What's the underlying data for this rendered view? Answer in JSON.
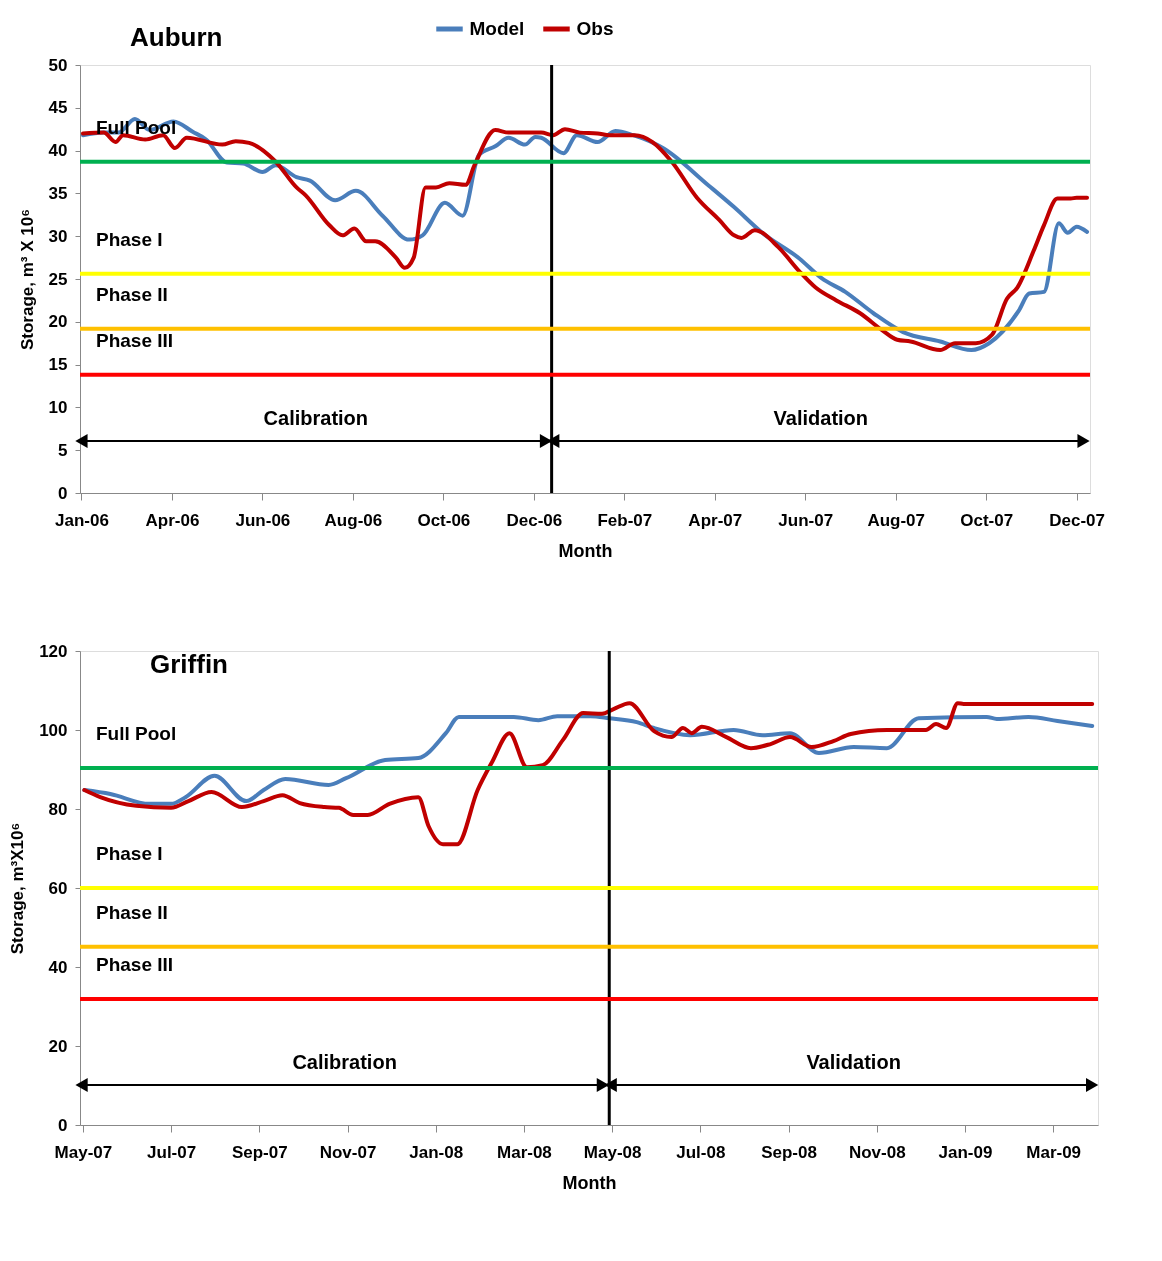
{
  "chart_data": [
    {
      "type": "line",
      "title": "Auburn",
      "xlabel": "Month",
      "ylabel": "Storage, m³ X 10⁶",
      "legend": "top",
      "grid": false,
      "line_style": "solid",
      "marker": "none",
      "xlim": [
        "2006-01-30",
        "2007-12-12"
      ],
      "ylim": [
        0,
        50
      ],
      "yticks": [
        0,
        5,
        10,
        15,
        20,
        25,
        30,
        35,
        40,
        45,
        50
      ],
      "xticks": [
        {
          "value": "2006-01-31",
          "label": "Jan-06"
        },
        {
          "value": "2006-04-02",
          "label": "Apr-06"
        },
        {
          "value": "2006-06-02",
          "label": "Jun-06"
        },
        {
          "value": "2006-08-02",
          "label": "Aug-06"
        },
        {
          "value": "2006-10-02",
          "label": "Oct-06"
        },
        {
          "value": "2006-12-02",
          "label": "Dec-06"
        },
        {
          "value": "2007-02-01",
          "label": "Feb-07"
        },
        {
          "value": "2007-04-03",
          "label": "Apr-07"
        },
        {
          "value": "2007-06-03",
          "label": "Jun-07"
        },
        {
          "value": "2007-08-03",
          "label": "Aug-07"
        },
        {
          "value": "2007-10-03",
          "label": "Oct-07"
        },
        {
          "value": "2007-12-03",
          "label": "Dec-07"
        }
      ],
      "series": [
        {
          "name": "Model",
          "color": "#4a7ebb",
          "x": [
            "2006-02-01",
            "2006-02-15",
            "2006-02-25",
            "2006-03-08",
            "2006-03-18",
            "2006-04-03",
            "2006-04-16",
            "2006-04-25",
            "2006-05-09",
            "2006-05-20",
            "2006-06-02",
            "2006-06-11",
            "2006-06-25",
            "2006-07-04",
            "2006-07-21",
            "2006-08-04",
            "2006-08-22",
            "2006-09-09",
            "2006-09-18",
            "2006-10-03",
            "2006-10-15",
            "2006-10-26",
            "2006-11-06",
            "2006-11-15",
            "2006-11-26",
            "2006-12-03",
            "2006-12-07",
            "2006-12-22",
            "2006-12-31",
            "2007-01-14",
            "2007-01-26",
            "2007-02-07",
            "2007-02-27",
            "2007-03-30",
            "2007-04-16",
            "2007-05-05",
            "2007-05-30",
            "2007-06-14",
            "2007-06-30",
            "2007-07-19",
            "2007-08-08",
            "2007-09-02",
            "2007-09-23",
            "2007-10-05",
            "2007-10-25",
            "2007-11-01",
            "2007-11-11",
            "2007-11-21",
            "2007-11-27",
            "2007-12-03",
            "2007-12-10"
          ],
          "values": [
            41.8,
            42.1,
            42.1,
            43.7,
            42.4,
            43.4,
            42.2,
            41.3,
            38.6,
            38.5,
            37.5,
            38.3,
            36.9,
            36.5,
            34.2,
            35.3,
            32.4,
            29.6,
            30.1,
            33.9,
            32.4,
            39.5,
            40.5,
            41.5,
            40.7,
            41.6,
            41.5,
            39.7,
            41.8,
            41.0,
            42.3,
            41.8,
            40.3,
            35.9,
            33.4,
            30.4,
            27.4,
            25.1,
            23.5,
            21.0,
            18.8,
            17.7,
            16.7,
            17.5,
            21.3,
            23.3,
            23.5,
            31.5,
            30.4,
            31.1,
            30.5
          ]
        },
        {
          "name": "Obs",
          "color": "#c00000",
          "x": [
            "2006-02-01",
            "2006-02-15",
            "2006-02-23",
            "2006-02-28",
            "2006-03-15",
            "2006-03-27",
            "2006-04-04",
            "2006-04-12",
            "2006-05-06",
            "2006-05-15",
            "2006-05-24",
            "2006-06-11",
            "2006-06-25",
            "2006-07-01",
            "2006-07-17",
            "2006-07-26",
            "2006-08-03",
            "2006-08-11",
            "2006-08-17",
            "2006-08-31",
            "2006-09-06",
            "2006-09-12",
            "2006-09-20",
            "2006-09-27",
            "2006-10-06",
            "2006-10-17",
            "2006-10-23",
            "2006-11-06",
            "2006-11-15",
            "2006-12-03",
            "2006-12-07",
            "2006-12-15",
            "2006-12-23",
            "2007-01-02",
            "2007-01-14",
            "2007-01-22",
            "2007-02-08",
            "2007-02-20",
            "2007-03-05",
            "2007-03-22",
            "2007-04-06",
            "2007-04-16",
            "2007-04-21",
            "2007-04-30",
            "2007-05-16",
            "2007-05-30",
            "2007-06-10",
            "2007-06-24",
            "2007-07-10",
            "2007-07-25",
            "2007-08-04",
            "2007-08-13",
            "2007-09-02",
            "2007-09-12",
            "2007-09-26",
            "2007-10-07",
            "2007-10-17",
            "2007-10-24",
            "2007-11-04",
            "2007-11-11",
            "2007-11-20",
            "2007-11-29",
            "2007-12-03",
            "2007-12-10"
          ],
          "values": [
            42.0,
            42.1,
            41.0,
            41.8,
            41.3,
            41.8,
            40.3,
            41.5,
            40.7,
            41.1,
            40.9,
            38.7,
            35.7,
            34.8,
            31.3,
            30.1,
            30.9,
            29.4,
            29.4,
            27.5,
            26.3,
            27.5,
            35.7,
            35.7,
            36.2,
            36.0,
            38.3,
            42.4,
            42.1,
            42.1,
            42.1,
            41.8,
            42.5,
            42.1,
            42.0,
            41.8,
            41.8,
            41.0,
            38.7,
            34.5,
            31.9,
            30.1,
            29.8,
            30.7,
            28.7,
            25.9,
            24.0,
            22.5,
            21.0,
            19.0,
            17.9,
            17.7,
            16.7,
            17.5,
            17.5,
            18.5,
            22.7,
            24.0,
            28.3,
            31.3,
            34.4,
            34.4,
            34.5,
            34.5
          ]
        }
      ],
      "ref_lines": [
        {
          "axis": "y",
          "value": 38.7,
          "label": "Full Pool",
          "color": "#00b050"
        },
        {
          "axis": "y",
          "value": 25.6,
          "label": "Phase  I",
          "color": "#ffff00"
        },
        {
          "axis": "y",
          "value": 19.2,
          "label": "Phase  II",
          "color": "#ffc000"
        },
        {
          "axis": "y",
          "value": 13.8,
          "label": "Phase  III",
          "color": "#ff0000"
        },
        {
          "axis": "x",
          "value": "2006-12-14",
          "color": "#000000"
        }
      ],
      "annotations": [
        "Calibration",
        "Validation"
      ]
    },
    {
      "type": "line",
      "title": "Griffin",
      "xlabel": "Month",
      "ylabel": "Storage, m³X10⁶",
      "grid": false,
      "line_style": "solid",
      "marker": "none",
      "xlim": [
        "2007-05-13",
        "2009-04-16"
      ],
      "ylim": [
        0,
        120
      ],
      "yticks": [
        0,
        20,
        40,
        60,
        80,
        100,
        120
      ],
      "xticks": [
        {
          "value": "2007-05-15",
          "label": "May-07"
        },
        {
          "value": "2007-07-15",
          "label": "Jul-07"
        },
        {
          "value": "2007-09-14",
          "label": "Sep-07"
        },
        {
          "value": "2007-11-14",
          "label": "Nov-07"
        },
        {
          "value": "2008-01-14",
          "label": "Jan-08"
        },
        {
          "value": "2008-03-15",
          "label": "Mar-08"
        },
        {
          "value": "2008-05-15",
          "label": "May-08"
        },
        {
          "value": "2008-07-15",
          "label": "Jul-08"
        },
        {
          "value": "2008-09-14",
          "label": "Sep-08"
        },
        {
          "value": "2008-11-14",
          "label": "Nov-08"
        },
        {
          "value": "2009-01-14",
          "label": "Jan-09"
        },
        {
          "value": "2009-03-16",
          "label": "Mar-09"
        }
      ],
      "series": [
        {
          "color": "#4a7ebb",
          "x": [
            "2007-05-16",
            "2007-06-03",
            "2007-06-30",
            "2007-07-15",
            "2007-07-25",
            "2007-08-14",
            "2007-09-05",
            "2007-09-17",
            "2007-10-02",
            "2007-11-01",
            "2007-11-13",
            "2007-12-10",
            "2008-01-02",
            "2008-01-21",
            "2008-01-30",
            "2008-03-08",
            "2008-03-25",
            "2008-04-07",
            "2008-04-30",
            "2008-05-13",
            "2008-06-01",
            "2008-06-13",
            "2008-07-08",
            "2008-08-07",
            "2008-08-27",
            "2008-09-15",
            "2008-10-05",
            "2008-10-29",
            "2008-11-21",
            "2008-12-13",
            "2009-01-29",
            "2009-02-05",
            "2009-02-27",
            "2009-03-19",
            "2009-04-12"
          ],
          "values": [
            84.8,
            83.8,
            81.3,
            81.3,
            83.0,
            88.4,
            82.0,
            84.8,
            87.6,
            86.1,
            87.8,
            92.4,
            92.9,
            99.2,
            103.3,
            103.3,
            102.5,
            103.5,
            103.5,
            103.0,
            102.0,
            100.5,
            98.7,
            100.0,
            98.7,
            99.2,
            94.2,
            95.7,
            95.4,
            103.0,
            103.3,
            102.8,
            103.3,
            102.3,
            101.0
          ]
        },
        {
          "color": "#c00000",
          "x": [
            "2007-05-16",
            "2007-05-27",
            "2007-06-21",
            "2007-07-15",
            "2007-07-27",
            "2007-08-12",
            "2007-09-02",
            "2007-09-17",
            "2007-09-30",
            "2007-10-12",
            "2007-10-29",
            "2007-11-08",
            "2007-11-18",
            "2007-11-28",
            "2007-12-13",
            "2008-01-02",
            "2008-01-09",
            "2008-01-19",
            "2008-01-29",
            "2008-02-12",
            "2008-02-22",
            "2008-03-05",
            "2008-03-17",
            "2008-03-28",
            "2008-04-11",
            "2008-04-25",
            "2008-05-08",
            "2008-05-16",
            "2008-05-27",
            "2008-06-13",
            "2008-06-25",
            "2008-07-03",
            "2008-07-09",
            "2008-07-16",
            "2008-08-02",
            "2008-08-19",
            "2008-09-02",
            "2008-09-15",
            "2008-09-30",
            "2008-10-15",
            "2008-10-27",
            "2008-11-21",
            "2008-12-18",
            "2008-12-25",
            "2009-01-01",
            "2009-01-09",
            "2009-01-13",
            "2009-04-12"
          ],
          "values": [
            84.8,
            83.0,
            80.8,
            80.3,
            82.0,
            84.3,
            80.5,
            82.0,
            83.5,
            81.5,
            80.5,
            80.3,
            78.5,
            78.5,
            81.3,
            83.0,
            75.7,
            71.1,
            71.1,
            84.8,
            91.9,
            99.2,
            90.6,
            91.1,
            97.5,
            104.3,
            104.1,
            105.3,
            106.8,
            99.7,
            98.2,
            100.5,
            99.2,
            100.8,
            98.2,
            95.4,
            96.5,
            98.2,
            95.7,
            97.2,
            99.0,
            100.0,
            100.0,
            101.5,
            100.5,
            106.8,
            106.6,
            106.6
          ]
        }
      ],
      "ref_lines": [
        {
          "axis": "y",
          "value": 90.4,
          "label": "Full Pool",
          "color": "#00b050"
        },
        {
          "axis": "y",
          "value": 60,
          "label": "Phase  I",
          "color": "#ffff00"
        },
        {
          "axis": "y",
          "value": 45.1,
          "label": "Phase  II",
          "color": "#ffc000"
        },
        {
          "axis": "y",
          "value": 31.9,
          "label": "Phase  III",
          "color": "#ff0000"
        },
        {
          "axis": "x",
          "value": "2008-05-13",
          "color": "#000000"
        }
      ],
      "annotations": [
        "Calibration",
        "Validation"
      ]
    }
  ]
}
